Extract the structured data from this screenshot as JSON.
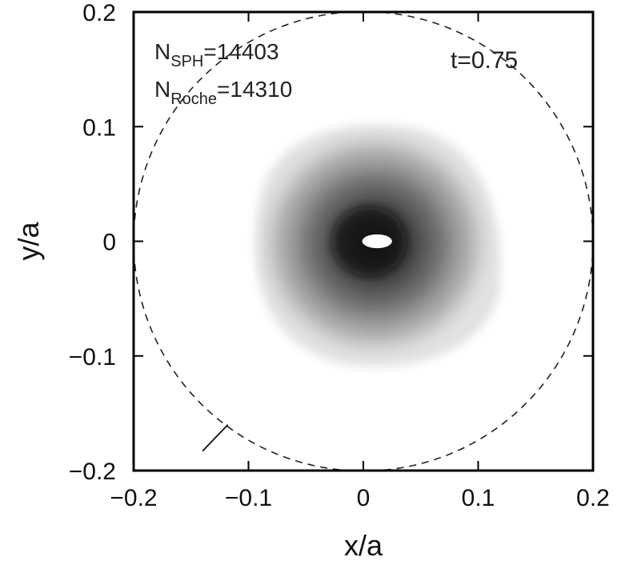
{
  "chart_data": {
    "type": "heatmap",
    "xlabel": "x/a",
    "ylabel": "y/a",
    "xlim": [
      -0.2,
      0.2
    ],
    "ylim": [
      -0.2,
      0.2
    ],
    "x_ticks": [
      -0.2,
      -0.1,
      0,
      0.1,
      0.2
    ],
    "y_ticks": [
      -0.2,
      -0.1,
      0,
      0.1,
      0.2
    ],
    "x_tick_labels": [
      "−0.2",
      "−0.1",
      "0",
      "0.1",
      "0.2"
    ],
    "y_tick_labels": [
      "−0.2",
      "−0.1",
      "0",
      "0.1",
      "0.2"
    ],
    "colormap": "grayscale density (white = low, dark = high)",
    "annotations": {
      "n_sph": {
        "prefix": "N",
        "subscript": "SPH",
        "value": "=14403"
      },
      "n_roche": {
        "prefix": "N",
        "subscript": "Roche",
        "value": "=14310"
      },
      "time": "t=0.75"
    },
    "roche_lobe": {
      "center": [
        0.0,
        0.0
      ],
      "radius": 0.2,
      "style": "dashed"
    },
    "disk": {
      "center": [
        0.01,
        0.0
      ],
      "approx_radius": 0.1,
      "peak_density_region": [
        0.005,
        0.0
      ]
    },
    "accretor": {
      "center": [
        0.012,
        0.0
      ],
      "rx": 0.013,
      "ry": 0.006,
      "color": "#ffffff"
    },
    "marker": {
      "from": [
        -0.14,
        -0.183
      ],
      "to": [
        -0.118,
        -0.16
      ]
    }
  }
}
